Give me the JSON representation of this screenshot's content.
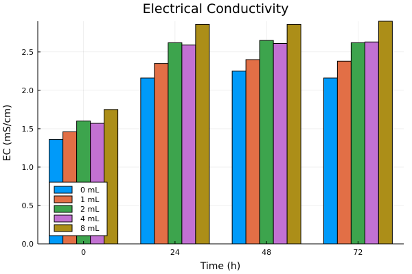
{
  "chart_data": {
    "type": "bar",
    "title": "Electrical Conductivity",
    "xlabel": "Time (h)",
    "ylabel": "EC (mS/cm)",
    "categories": [
      "0",
      "24",
      "48",
      "72"
    ],
    "ylim": [
      0,
      2.9
    ],
    "yticks": [
      "0.0",
      "0.5",
      "1.0",
      "1.5",
      "2.0",
      "2.5"
    ],
    "grid": true,
    "legend_position": "bottom-left",
    "series": [
      {
        "name": "0 mL",
        "color": "#009af9",
        "values": [
          1.36,
          2.16,
          2.25,
          2.16
        ]
      },
      {
        "name": "1 mL",
        "color": "#e26f46",
        "values": [
          1.46,
          2.35,
          2.4,
          2.38
        ]
      },
      {
        "name": "2 mL",
        "color": "#3da44d",
        "values": [
          1.6,
          2.62,
          2.65,
          2.62
        ]
      },
      {
        "name": "4 mL",
        "color": "#c271d2",
        "values": [
          1.57,
          2.59,
          2.61,
          2.63
        ]
      },
      {
        "name": "8 mL",
        "color": "#ac8e18",
        "values": [
          1.75,
          2.86,
          2.86,
          2.9
        ]
      }
    ]
  }
}
